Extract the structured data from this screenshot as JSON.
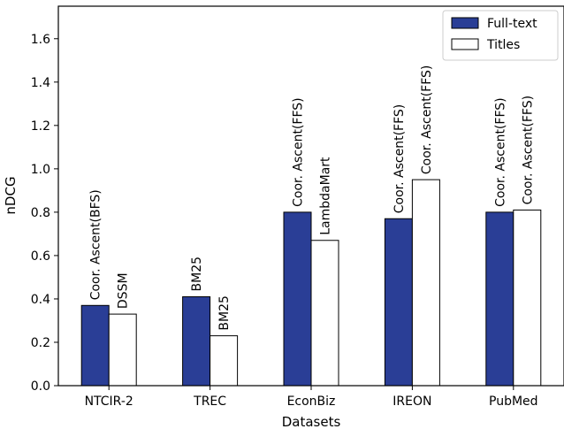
{
  "chart_data": {
    "type": "bar",
    "title": "",
    "xlabel": "Datasets",
    "ylabel": "nDCG",
    "ylim": [
      0,
      1.75
    ],
    "yticks": [
      "0.0",
      "0.2",
      "0.4",
      "0.6",
      "0.8",
      "1.0",
      "1.2",
      "1.4",
      "1.6"
    ],
    "categories": [
      "NTCIR-2",
      "TREC",
      "EconBiz",
      "IREON",
      "PubMed"
    ],
    "legend_position": "top-right",
    "grid": false,
    "series": [
      {
        "name": "Full-text",
        "color": "#2a3e96",
        "values": [
          0.37,
          0.41,
          0.8,
          0.77,
          0.8
        ],
        "labels": [
          "Coor. Ascent(BFS)",
          "BM25",
          "Coor. Ascent(FFS)",
          "Coor. Ascent(FFS)",
          "Coor. Ascent(FFS)"
        ]
      },
      {
        "name": "Titles",
        "color": "#ffffff",
        "values": [
          0.33,
          0.23,
          0.67,
          0.95,
          0.81
        ],
        "labels": [
          "DSSM",
          "BM25",
          "LambdaMart",
          "Coor. Ascent(FFS)",
          "Coor. Ascent(FFS)"
        ]
      }
    ]
  }
}
